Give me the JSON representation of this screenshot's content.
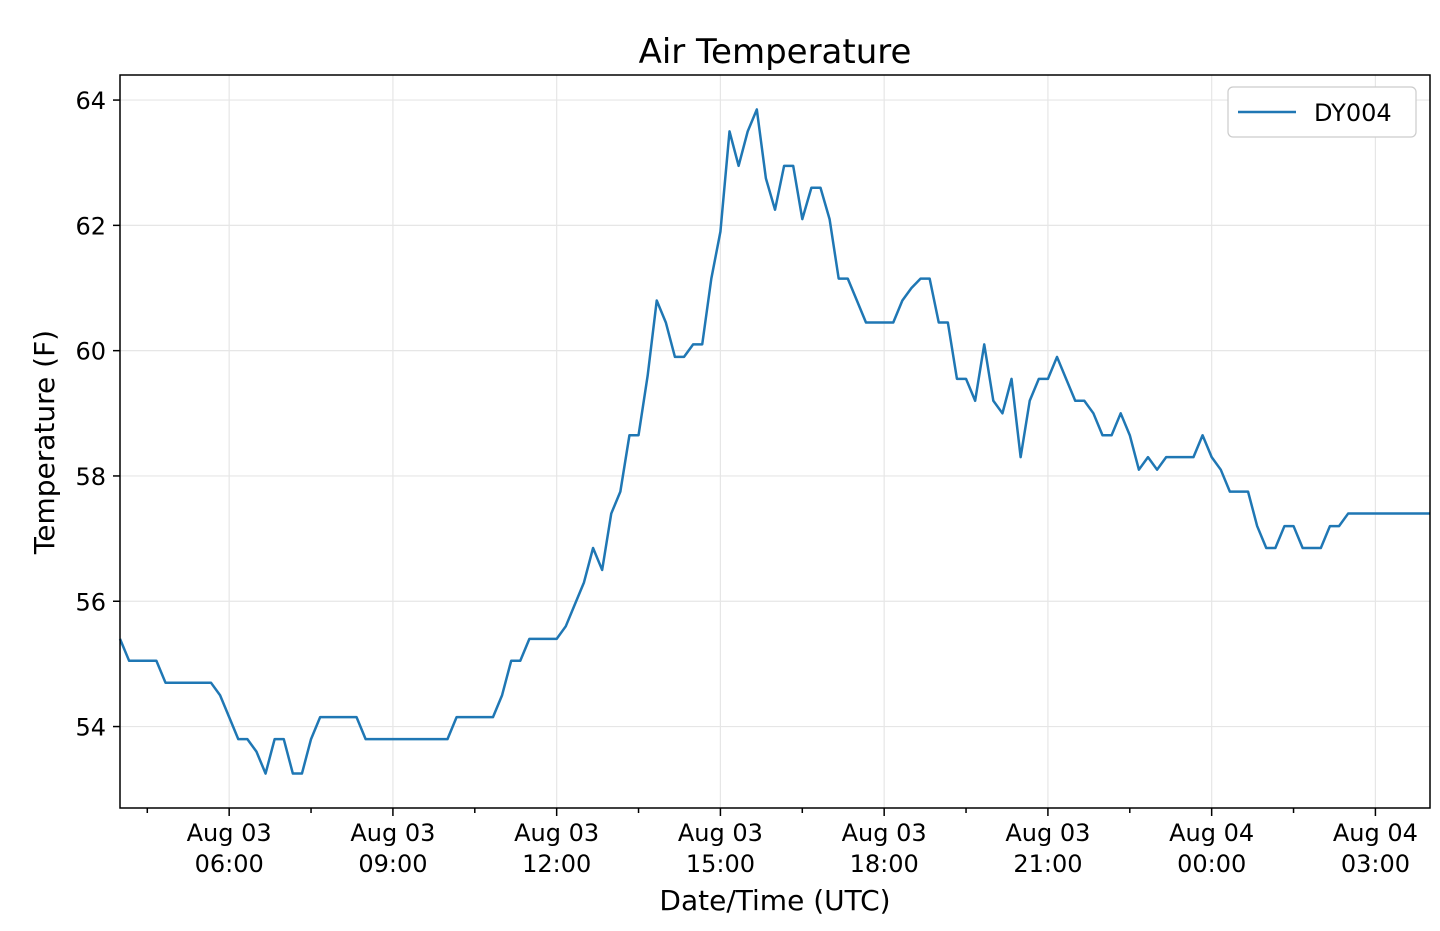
{
  "chart_data": {
    "type": "line",
    "title": "Air Temperature",
    "xlabel": "Date/Time (UTC)",
    "ylabel": "Temperature (F)",
    "ylim": [
      52.7,
      64.4
    ],
    "xlim": [
      "2019-08-03T04:00",
      "2019-08-04T04:00"
    ],
    "yticks": [
      54,
      56,
      58,
      60,
      62,
      64
    ],
    "xticks": [
      {
        "x": "2019-08-03T06:00",
        "line1": "Aug 03",
        "line2": "06:00"
      },
      {
        "x": "2019-08-03T09:00",
        "line1": "Aug 03",
        "line2": "09:00"
      },
      {
        "x": "2019-08-03T12:00",
        "line1": "Aug 03",
        "line2": "12:00"
      },
      {
        "x": "2019-08-03T15:00",
        "line1": "Aug 03",
        "line2": "15:00"
      },
      {
        "x": "2019-08-03T18:00",
        "line1": "Aug 03",
        "line2": "18:00"
      },
      {
        "x": "2019-08-03T21:00",
        "line1": "Aug 03",
        "line2": "21:00"
      },
      {
        "x": "2019-08-04T00:00",
        "line1": "Aug 04",
        "line2": "00:00"
      },
      {
        "x": "2019-08-04T03:00",
        "line1": "Aug 04",
        "line2": "03:00"
      }
    ],
    "grid": true,
    "legend_position": "top-right",
    "series": [
      {
        "name": "DY004",
        "color": "#1f77b4",
        "x": [
          "2019-08-03T04:00",
          "2019-08-03T04:10",
          "2019-08-03T04:20",
          "2019-08-03T04:30",
          "2019-08-03T04:40",
          "2019-08-03T04:50",
          "2019-08-03T05:00",
          "2019-08-03T05:10",
          "2019-08-03T05:20",
          "2019-08-03T05:30",
          "2019-08-03T05:40",
          "2019-08-03T05:50",
          "2019-08-03T06:00",
          "2019-08-03T06:10",
          "2019-08-03T06:20",
          "2019-08-03T06:30",
          "2019-08-03T06:40",
          "2019-08-03T06:50",
          "2019-08-03T07:00",
          "2019-08-03T07:10",
          "2019-08-03T07:20",
          "2019-08-03T07:30",
          "2019-08-03T07:40",
          "2019-08-03T07:50",
          "2019-08-03T08:00",
          "2019-08-03T08:10",
          "2019-08-03T08:20",
          "2019-08-03T08:30",
          "2019-08-03T08:40",
          "2019-08-03T08:50",
          "2019-08-03T09:00",
          "2019-08-03T09:10",
          "2019-08-03T09:20",
          "2019-08-03T09:30",
          "2019-08-03T09:40",
          "2019-08-03T09:50",
          "2019-08-03T10:00",
          "2019-08-03T10:10",
          "2019-08-03T10:20",
          "2019-08-03T10:30",
          "2019-08-03T10:40",
          "2019-08-03T10:50",
          "2019-08-03T11:00",
          "2019-08-03T11:10",
          "2019-08-03T11:20",
          "2019-08-03T11:30",
          "2019-08-03T11:40",
          "2019-08-03T11:50",
          "2019-08-03T12:00",
          "2019-08-03T12:10",
          "2019-08-03T12:20",
          "2019-08-03T12:30",
          "2019-08-03T12:40",
          "2019-08-03T12:50",
          "2019-08-03T13:00",
          "2019-08-03T13:10",
          "2019-08-03T13:20",
          "2019-08-03T13:30",
          "2019-08-03T13:40",
          "2019-08-03T13:50",
          "2019-08-03T14:00",
          "2019-08-03T14:10",
          "2019-08-03T14:20",
          "2019-08-03T14:30",
          "2019-08-03T14:40",
          "2019-08-03T14:50",
          "2019-08-03T15:00",
          "2019-08-03T15:10",
          "2019-08-03T15:20",
          "2019-08-03T15:30",
          "2019-08-03T15:40",
          "2019-08-03T15:50",
          "2019-08-03T16:00",
          "2019-08-03T16:10",
          "2019-08-03T16:20",
          "2019-08-03T16:30",
          "2019-08-03T16:40",
          "2019-08-03T16:50",
          "2019-08-03T17:00",
          "2019-08-03T17:10",
          "2019-08-03T17:20",
          "2019-08-03T17:30",
          "2019-08-03T17:40",
          "2019-08-03T17:50",
          "2019-08-03T18:00",
          "2019-08-03T18:10",
          "2019-08-03T18:20",
          "2019-08-03T18:30",
          "2019-08-03T18:40",
          "2019-08-03T18:50",
          "2019-08-03T19:00",
          "2019-08-03T19:10",
          "2019-08-03T19:20",
          "2019-08-03T19:30",
          "2019-08-03T19:40",
          "2019-08-03T19:50",
          "2019-08-03T20:00",
          "2019-08-03T20:10",
          "2019-08-03T20:20",
          "2019-08-03T20:30",
          "2019-08-03T20:40",
          "2019-08-03T20:50",
          "2019-08-03T21:00",
          "2019-08-03T21:10",
          "2019-08-03T21:20",
          "2019-08-03T21:30",
          "2019-08-03T21:40",
          "2019-08-03T21:50",
          "2019-08-03T22:00",
          "2019-08-03T22:10",
          "2019-08-03T22:20",
          "2019-08-03T22:30",
          "2019-08-03T22:40",
          "2019-08-03T22:50",
          "2019-08-03T23:00",
          "2019-08-03T23:10",
          "2019-08-03T23:20",
          "2019-08-03T23:30",
          "2019-08-03T23:40",
          "2019-08-03T23:50",
          "2019-08-04T00:00",
          "2019-08-04T00:10",
          "2019-08-04T00:20",
          "2019-08-04T00:30",
          "2019-08-04T00:40",
          "2019-08-04T00:50",
          "2019-08-04T01:00",
          "2019-08-04T01:10",
          "2019-08-04T01:20",
          "2019-08-04T01:30",
          "2019-08-04T01:40",
          "2019-08-04T01:50",
          "2019-08-04T02:00",
          "2019-08-04T02:10",
          "2019-08-04T02:20",
          "2019-08-04T02:30",
          "2019-08-04T02:40",
          "2019-08-04T02:50",
          "2019-08-04T03:00",
          "2019-08-04T03:10",
          "2019-08-04T03:20",
          "2019-08-04T03:30",
          "2019-08-04T03:40",
          "2019-08-04T03:50",
          "2019-08-04T04:00"
        ],
        "y": [
          55.4,
          55.05,
          55.05,
          55.05,
          55.05,
          54.7,
          54.7,
          54.7,
          54.7,
          54.7,
          54.7,
          54.5,
          54.15,
          53.8,
          53.8,
          53.6,
          53.25,
          53.8,
          53.8,
          53.25,
          53.25,
          53.8,
          54.15,
          54.15,
          54.15,
          54.15,
          54.15,
          53.8,
          53.8,
          53.8,
          53.8,
          53.8,
          53.8,
          53.8,
          53.8,
          53.8,
          53.8,
          54.15,
          54.15,
          54.15,
          54.15,
          54.15,
          54.5,
          55.05,
          55.05,
          55.4,
          55.4,
          55.4,
          55.4,
          55.6,
          55.95,
          56.3,
          56.85,
          56.5,
          57.4,
          57.75,
          58.65,
          58.65,
          59.6,
          60.8,
          60.45,
          59.9,
          59.9,
          60.1,
          60.1,
          61.15,
          61.9,
          63.5,
          62.95,
          63.5,
          63.85,
          62.75,
          62.25,
          62.95,
          62.95,
          62.1,
          62.6,
          62.6,
          62.1,
          61.15,
          61.15,
          60.8,
          60.45,
          60.45,
          60.45,
          60.45,
          60.8,
          61.0,
          61.15,
          61.15,
          60.45,
          60.45,
          59.55,
          59.55,
          59.2,
          60.1,
          59.2,
          59.0,
          59.55,
          58.3,
          59.2,
          59.55,
          59.55,
          59.9,
          59.55,
          59.2,
          59.2,
          59.0,
          58.65,
          58.65,
          59.0,
          58.65,
          58.1,
          58.3,
          58.1,
          58.3,
          58.3,
          58.3,
          58.3,
          58.65,
          58.3,
          58.1,
          57.75,
          57.75,
          57.75,
          57.2,
          56.85,
          56.85,
          57.2,
          57.2,
          56.85,
          56.85,
          56.85,
          57.2,
          57.2,
          57.4,
          57.4,
          57.4,
          57.4,
          57.4,
          57.4,
          57.4,
          57.4,
          57.4,
          57.4
        ]
      }
    ]
  }
}
